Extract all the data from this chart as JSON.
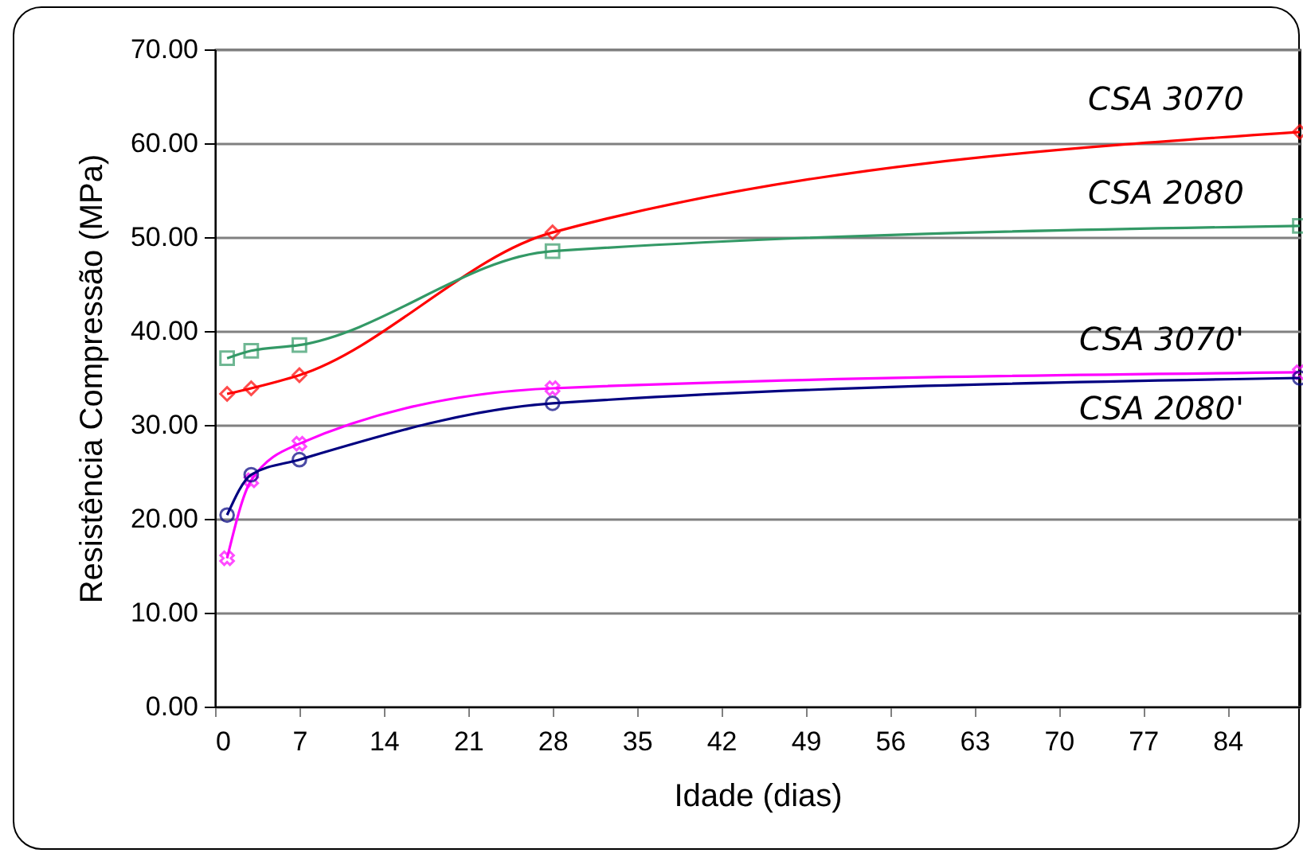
{
  "chart_data": {
    "type": "line",
    "xlabel": "Idade (dias)",
    "ylabel": "Resistência Compressão (MPa)",
    "xlim": [
      0,
      90
    ],
    "xticks": [
      0,
      7,
      14,
      21,
      28,
      35,
      42,
      49,
      56,
      63,
      70,
      77,
      84
    ],
    "ylim": [
      0,
      70
    ],
    "yticks": [
      {
        "value": 0,
        "label": "0.00"
      },
      {
        "value": 10,
        "label": "10.00"
      },
      {
        "value": 20,
        "label": "20.00"
      },
      {
        "value": 30,
        "label": "30.00"
      },
      {
        "value": 40,
        "label": "40.00"
      },
      {
        "value": 50,
        "label": "50.00"
      },
      {
        "value": 60,
        "label": "60.00"
      },
      {
        "value": 70,
        "label": "70.00"
      }
    ],
    "grid": "y",
    "legend": false,
    "series": [
      {
        "name": "CSA 3070",
        "color": "#ff0000",
        "marker": "diamond",
        "x": [
          1,
          3,
          7,
          28,
          90
        ],
        "values": [
          33.3,
          33.9,
          35.3,
          50.5,
          61.2
        ]
      },
      {
        "name": "CSA 2080",
        "color": "#339966",
        "marker": "square",
        "x": [
          1,
          3,
          7,
          28,
          90
        ],
        "values": [
          37.1,
          37.9,
          38.5,
          48.5,
          51.2
        ]
      },
      {
        "name": "CSA 3070'",
        "color": "#ff00ff",
        "marker": "cross",
        "x": [
          1,
          3,
          7,
          28,
          90
        ],
        "values": [
          15.8,
          24.1,
          28.0,
          33.9,
          35.6
        ]
      },
      {
        "name": "CSA 2080'",
        "color": "#000080",
        "marker": "circle",
        "x": [
          1,
          3,
          7,
          28,
          90
        ],
        "values": [
          20.4,
          24.7,
          26.3,
          32.3,
          35.0
        ]
      }
    ]
  }
}
